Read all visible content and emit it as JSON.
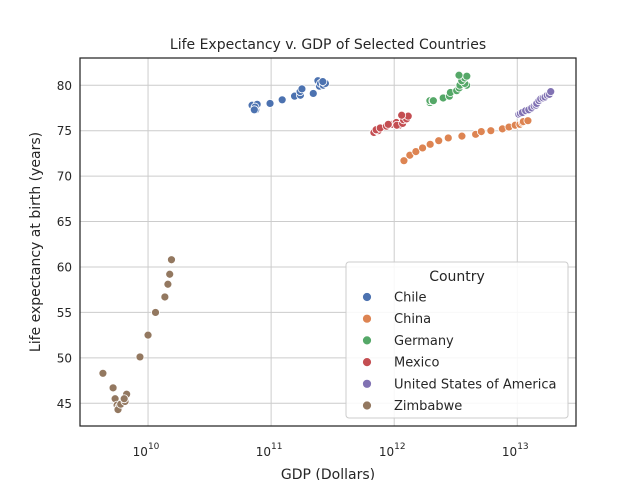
{
  "chart_data": {
    "type": "scatter",
    "title": "Life Expectancy v. GDP of Selected Countries",
    "xlabel": "GDP (Dollars)",
    "ylabel": "Life expectancy at birth (years)",
    "x_scale": "log",
    "xlim": [
      2800000000,
      30000000000000
    ],
    "ylim": [
      42.5,
      83
    ],
    "x_ticks": [
      {
        "value": 10000000000,
        "base": "10",
        "exp": "10"
      },
      {
        "value": 100000000000,
        "base": "10",
        "exp": "11"
      },
      {
        "value": 1000000000000,
        "base": "10",
        "exp": "12"
      },
      {
        "value": 10000000000000,
        "base": "10",
        "exp": "13"
      }
    ],
    "y_ticks": [
      45,
      50,
      55,
      60,
      65,
      70,
      75,
      80
    ],
    "grid": true,
    "legend_title": "Country",
    "legend_position": "lower-right",
    "series": [
      {
        "name": "Chile",
        "color": "#4c72b0",
        "x": [
          70000000000,
          75000000000,
          77000000000,
          74000000000,
          73000000000,
          98000000000,
          123000000000,
          155000000000,
          173000000000,
          172000000000,
          178000000000,
          220000000000,
          240000000000,
          247000000000,
          252000000000,
          265000000000,
          276000000000,
          263000000000
        ],
        "y": [
          77.8,
          77.3,
          77.9,
          77.6,
          77.3,
          78.0,
          78.4,
          78.8,
          78.9,
          79.3,
          79.6,
          79.1,
          80.5,
          79.9,
          80.2,
          80.0,
          80.2,
          80.4
        ]
      },
      {
        "name": "China",
        "color": "#dd8452",
        "x": [
          1200000000000,
          1340000000000,
          1500000000000,
          1700000000000,
          1960000000000,
          2300000000000,
          2750000000000,
          3550000000000,
          4590000000000,
          5100000000000,
          6100000000000,
          7570000000000,
          8560000000000,
          9610000000000,
          10500000000000,
          11000000000000,
          11200000000000,
          12200000000000
        ],
        "y": [
          71.7,
          72.3,
          72.7,
          73.1,
          73.5,
          73.9,
          74.2,
          74.4,
          74.6,
          74.9,
          75.0,
          75.2,
          75.4,
          75.6,
          75.7,
          75.9,
          76.0,
          76.1
        ]
      },
      {
        "name": "Germany",
        "color": "#55a868",
        "x": [
          1950000000000,
          1950000000000,
          2060000000000,
          2080000000000,
          2500000000000,
          2810000000000,
          2860000000000,
          3220000000000,
          3370000000000,
          3420000000000,
          3880000000000,
          3750000000000,
          3540000000000,
          3740000000000,
          3890000000000,
          3360000000000
        ],
        "y": [
          78.1,
          78.3,
          78.3,
          78.3,
          78.6,
          78.8,
          79.2,
          79.4,
          79.7,
          80.0,
          80.0,
          80.2,
          80.5,
          80.8,
          81.0,
          81.1
        ]
      },
      {
        "name": "Mexico",
        "color": "#c44e52",
        "x": [
          684000000000,
          725000000000,
          741000000000,
          713000000000,
          770000000000,
          866000000000,
          965000000000,
          1040000000000,
          1100000000000,
          895000000000,
          1050000000000,
          1170000000000,
          1190000000000,
          1260000000000,
          1300000000000,
          1150000000000
        ],
        "y": [
          74.8,
          75.0,
          75.0,
          75.1,
          75.3,
          75.5,
          75.7,
          75.9,
          75.6,
          75.7,
          75.6,
          75.8,
          76.2,
          76.3,
          76.6,
          76.7
        ]
      },
      {
        "name": "United States of America",
        "color": "#8172b3",
        "x": [
          10300000000000,
          10600000000000,
          11000000000000,
          11700000000000,
          12400000000000,
          13100000000000,
          13700000000000,
          14200000000000,
          14400000000000,
          15000000000000,
          15500000000000,
          16200000000000,
          16800000000000,
          17500000000000,
          18200000000000,
          18700000000000
        ],
        "y": [
          76.8,
          76.9,
          77.0,
          77.2,
          77.3,
          77.5,
          77.7,
          77.8,
          78.0,
          78.3,
          78.5,
          78.6,
          78.7,
          78.9,
          79.0,
          79.3
        ]
      },
      {
        "name": "Zimbabwe",
        "color": "#937860",
        "x": [
          4300000000,
          5200000000,
          5400000000,
          5600000000,
          5800000000,
          5700000000,
          6000000000,
          6500000000,
          6700000000,
          6400000000,
          8600000000,
          10000000000,
          11500000000,
          13700000000,
          14500000000,
          15000000000,
          15500000000
        ],
        "y": [
          48.3,
          46.7,
          45.5,
          44.8,
          44.6,
          44.3,
          44.9,
          45.2,
          46.0,
          45.5,
          50.1,
          52.5,
          55.0,
          56.7,
          58.1,
          59.2,
          60.8
        ]
      }
    ]
  }
}
